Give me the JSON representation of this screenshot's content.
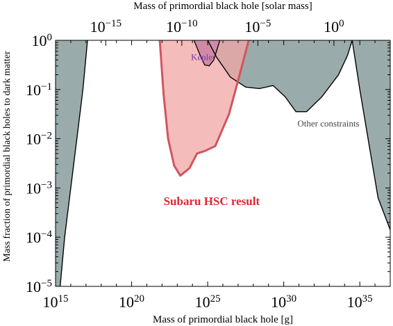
{
  "chart_data": {
    "type": "area",
    "title": "",
    "xlabel": "Mass of primordial black hole [g]",
    "ylabel": "Mass fraction of primordial black holes to dark matter",
    "x2label": "Mass of primordial black hole [solar mass]",
    "x_scale": "log",
    "y_scale": "log",
    "xlim": [
      1000000000000000.0,
      1e+37
    ],
    "ylim": [
      1e-05,
      1
    ],
    "grid": false,
    "legend": "none",
    "x_ticks": [
      {
        "exp": 15,
        "base": "10",
        "sup": "15"
      },
      {
        "exp": 20,
        "base": "10",
        "sup": "20"
      },
      {
        "exp": 25,
        "base": "10",
        "sup": "25"
      },
      {
        "exp": 30,
        "base": "10",
        "sup": "30"
      },
      {
        "exp": 35,
        "base": "10",
        "sup": "35"
      }
    ],
    "y_ticks": [
      {
        "exp": -5,
        "base": "10",
        "sup": "−5"
      },
      {
        "exp": -4,
        "base": "10",
        "sup": "−4"
      },
      {
        "exp": -3,
        "base": "10",
        "sup": "−3"
      },
      {
        "exp": -2,
        "base": "10",
        "sup": "−2"
      },
      {
        "exp": -1,
        "base": "10",
        "sup": "−1"
      },
      {
        "exp": 0,
        "base": "10",
        "sup": "0"
      }
    ],
    "x2_ticks": [
      {
        "exp": 18.3,
        "base": "10",
        "sup": "−15"
      },
      {
        "exp": 23.3,
        "base": "10",
        "sup": "−10"
      },
      {
        "exp": 28.3,
        "base": "10",
        "sup": "−5"
      },
      {
        "exp": 33.3,
        "base": "10",
        "sup": "0"
      }
    ],
    "series": [
      {
        "name": "Other constraints",
        "color": "#9aabab",
        "points": [
          {
            "x": 15.3,
            "y": -5
          },
          {
            "x": 15.6,
            "y": -4
          },
          {
            "x": 16.0,
            "y": -3
          },
          {
            "x": 16.4,
            "y": -2
          },
          {
            "x": 16.8,
            "y": -1
          },
          {
            "x": 17.1,
            "y": 0
          }
        ]
      },
      {
        "name": "Other constraints",
        "color": "#9aabab",
        "points": [
          {
            "x": 25.0,
            "y": 0
          },
          {
            "x": 25.6,
            "y": -0.35
          },
          {
            "x": 26.5,
            "y": -0.75
          },
          {
            "x": 27.5,
            "y": -0.95
          },
          {
            "x": 28.4,
            "y": -0.98
          },
          {
            "x": 29.3,
            "y": -0.92
          },
          {
            "x": 30.1,
            "y": -1.15
          },
          {
            "x": 30.8,
            "y": -1.45
          },
          {
            "x": 31.5,
            "y": -1.45
          },
          {
            "x": 32.5,
            "y": -1.15
          },
          {
            "x": 33.6,
            "y": -0.7
          },
          {
            "x": 34.2,
            "y": -0.3
          },
          {
            "x": 34.5,
            "y": 0
          }
        ]
      },
      {
        "name": "Other constraints",
        "color": "#9aabab",
        "points": [
          {
            "x": 34.5,
            "y": 0
          },
          {
            "x": 35.0,
            "y": -1.0
          },
          {
            "x": 35.6,
            "y": -2.1
          },
          {
            "x": 36.2,
            "y": -3.2
          },
          {
            "x": 37.0,
            "y": -3.85
          }
        ]
      },
      {
        "name": "Kepler",
        "color": "#7039a8",
        "points": [
          {
            "x": 24.1,
            "y": 0
          },
          {
            "x": 24.5,
            "y": -0.3
          },
          {
            "x": 24.8,
            "y": -0.5
          },
          {
            "x": 25.1,
            "y": -0.52
          },
          {
            "x": 25.4,
            "y": -0.4
          },
          {
            "x": 25.6,
            "y": -0.2
          },
          {
            "x": 25.8,
            "y": 0
          }
        ]
      },
      {
        "name": "Subaru HSC result",
        "color": "#f2a6a6",
        "points": [
          {
            "x": 21.85,
            "y": 0
          },
          {
            "x": 22.1,
            "y": -1.1
          },
          {
            "x": 22.4,
            "y": -2.0
          },
          {
            "x": 22.8,
            "y": -2.55
          },
          {
            "x": 23.2,
            "y": -2.75
          },
          {
            "x": 23.8,
            "y": -2.6
          },
          {
            "x": 24.3,
            "y": -2.3
          },
          {
            "x": 24.8,
            "y": -2.25
          },
          {
            "x": 25.5,
            "y": -2.15
          },
          {
            "x": 26.4,
            "y": -1.5
          },
          {
            "x": 27.1,
            "y": -0.7
          },
          {
            "x": 27.7,
            "y": 0
          }
        ]
      }
    ],
    "annotations": [
      {
        "text": "Kepler",
        "color": "#7a3aa8",
        "x": 23.9,
        "y": -0.4
      },
      {
        "text": "Other constraints",
        "color": "#444444",
        "x": 30.9,
        "y": -1.75
      },
      {
        "text": "Subaru HSC result",
        "color": "#e0282f",
        "x": 22.1,
        "y": -3.35
      }
    ]
  },
  "colors": {
    "other": "#9aabab",
    "kepler": "#7039a8",
    "hsc_fill": "#f2a6a6",
    "hsc_line": "#d0555d",
    "hsc_label": "#e0282f",
    "kepler_label": "#7a3aa8"
  }
}
